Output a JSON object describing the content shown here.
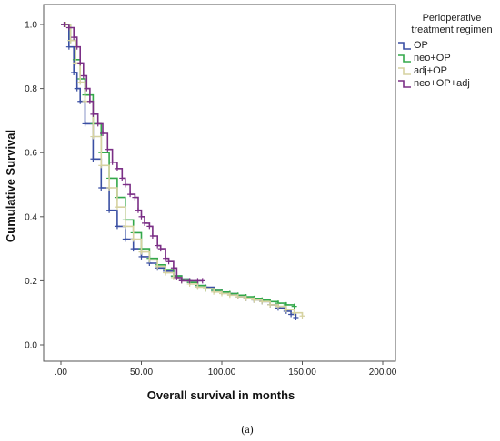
{
  "chart_data": {
    "type": "line",
    "step": true,
    "xlabel": "Overall survival in months",
    "ylabel": "Cumulative Survival",
    "xlim": [
      0,
      200
    ],
    "ylim": [
      0,
      1.0
    ],
    "x_ticks": [
      ".00",
      "50.00",
      "100.00",
      "150.00",
      "200.00"
    ],
    "x_tick_values": [
      0,
      50,
      100,
      150,
      200
    ],
    "y_ticks": [
      "0.0",
      "0.2",
      "0.4",
      "0.6",
      "0.8",
      "1.0"
    ],
    "y_tick_values": [
      0,
      0.2,
      0.4,
      0.6,
      0.8,
      1.0
    ],
    "grid": false,
    "legend": {
      "title_lines": [
        "Perioperative",
        "treatment regimen"
      ],
      "placement": "top-right outside"
    },
    "caption": "(a)",
    "series": [
      {
        "name": "OP",
        "color": "#3a4fa3",
        "x": [
          2,
          5,
          8,
          10,
          12,
          15,
          20,
          25,
          30,
          35,
          40,
          45,
          50,
          55,
          60,
          65,
          70,
          75,
          80,
          85,
          90,
          95,
          100,
          105,
          110,
          115,
          120,
          125,
          130,
          135,
          140,
          143,
          146
        ],
        "y": [
          1.0,
          0.93,
          0.85,
          0.8,
          0.76,
          0.69,
          0.58,
          0.49,
          0.42,
          0.37,
          0.33,
          0.3,
          0.275,
          0.255,
          0.24,
          0.23,
          0.215,
          0.205,
          0.195,
          0.185,
          0.18,
          0.17,
          0.165,
          0.16,
          0.15,
          0.145,
          0.14,
          0.135,
          0.125,
          0.115,
          0.105,
          0.095,
          0.085
        ]
      },
      {
        "name": "neo+OP",
        "color": "#33a84a",
        "x": [
          3,
          6,
          9,
          12,
          15,
          20,
          25,
          30,
          35,
          40,
          45,
          50,
          55,
          60,
          65,
          70,
          75,
          80,
          85,
          90,
          95,
          100,
          105,
          110,
          115,
          120,
          125,
          130,
          135,
          140,
          145
        ],
        "y": [
          1.0,
          0.95,
          0.89,
          0.83,
          0.78,
          0.69,
          0.6,
          0.52,
          0.46,
          0.39,
          0.35,
          0.3,
          0.27,
          0.25,
          0.235,
          0.215,
          0.205,
          0.195,
          0.185,
          0.175,
          0.17,
          0.165,
          0.16,
          0.155,
          0.15,
          0.145,
          0.14,
          0.135,
          0.13,
          0.125,
          0.12
        ]
      },
      {
        "name": "adj+OP",
        "color": "#d6d2a0",
        "x": [
          3,
          6,
          9,
          12,
          15,
          20,
          25,
          30,
          35,
          40,
          45,
          50,
          55,
          60,
          65,
          70,
          75,
          80,
          85,
          90,
          95,
          100,
          105,
          110,
          115,
          120,
          125,
          130,
          135,
          140,
          145,
          150
        ],
        "y": [
          1.0,
          0.95,
          0.88,
          0.82,
          0.76,
          0.65,
          0.56,
          0.49,
          0.43,
          0.37,
          0.33,
          0.29,
          0.265,
          0.245,
          0.225,
          0.21,
          0.2,
          0.19,
          0.18,
          0.175,
          0.165,
          0.16,
          0.155,
          0.15,
          0.145,
          0.14,
          0.135,
          0.125,
          0.12,
          0.11,
          0.1,
          0.09
        ]
      },
      {
        "name": "neo+OP+adj",
        "color": "#7b2f86",
        "x": [
          2,
          5,
          8,
          10,
          12,
          14,
          16,
          18,
          20,
          23,
          26,
          29,
          32,
          35,
          38,
          40,
          43,
          46,
          48,
          50,
          52,
          55,
          57,
          60,
          62,
          65,
          67,
          70,
          72,
          75,
          80,
          85,
          88
        ],
        "y": [
          1.0,
          0.99,
          0.96,
          0.93,
          0.88,
          0.84,
          0.8,
          0.76,
          0.72,
          0.69,
          0.66,
          0.61,
          0.57,
          0.55,
          0.52,
          0.5,
          0.47,
          0.46,
          0.42,
          0.4,
          0.38,
          0.37,
          0.34,
          0.31,
          0.3,
          0.27,
          0.26,
          0.24,
          0.21,
          0.2,
          0.2,
          0.2,
          0.2
        ]
      }
    ]
  }
}
